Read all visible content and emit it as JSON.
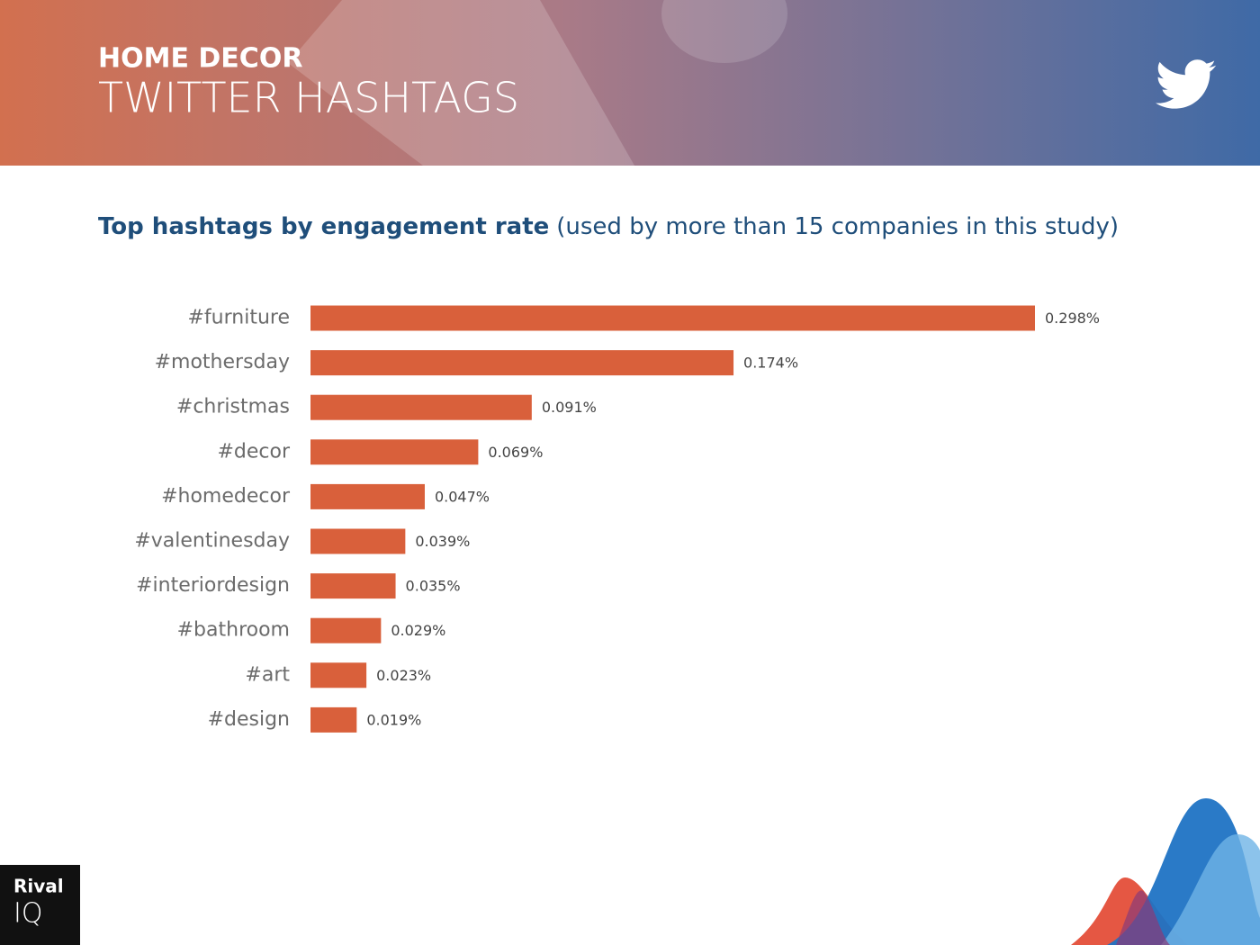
{
  "header": {
    "kicker": "HOME DECOR",
    "title": "TWITTER HASHTAGS"
  },
  "chart_data": {
    "type": "bar",
    "orientation": "horizontal",
    "title": "Top hashtags by engagement rate",
    "subtitle": "(used by more than 15 companies in this study)",
    "categories": [
      "#furniture",
      "#mothersday",
      "#christmas",
      "#decor",
      "#homedecor",
      "#valentinesday",
      "#interiordesign",
      "#bathroom",
      "#art",
      "#design"
    ],
    "values": [
      0.298,
      0.174,
      0.091,
      0.069,
      0.047,
      0.039,
      0.035,
      0.029,
      0.023,
      0.019
    ],
    "value_labels": [
      "0.298%",
      "0.174%",
      "0.091%",
      "0.069%",
      "0.047%",
      "0.039%",
      "0.035%",
      "0.029%",
      "0.023%",
      "0.019%"
    ],
    "color": "#d9603b"
  },
  "logo": {
    "line1": "Rival",
    "line2": "IQ"
  }
}
